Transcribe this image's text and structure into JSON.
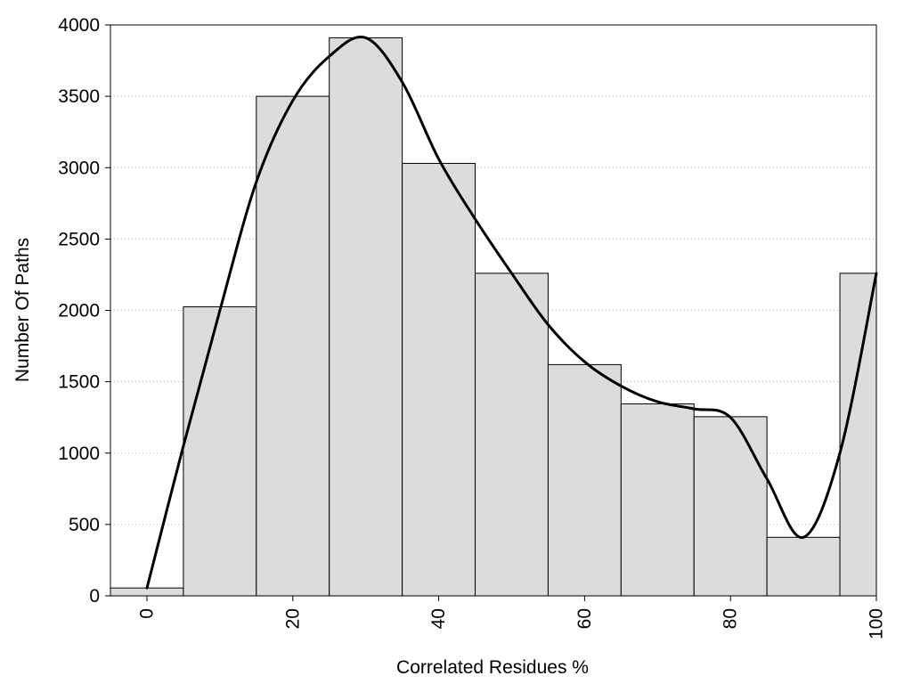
{
  "chart_data": {
    "type": "bar",
    "title": "",
    "xlabel": "Correlated Residues %",
    "ylabel": "Number Of Paths",
    "xlim": [
      -5,
      100
    ],
    "ylim": [
      0,
      4000
    ],
    "x_ticks": [
      0,
      20,
      40,
      60,
      80,
      100
    ],
    "x_tick_labels": [
      "0",
      "20",
      "40",
      "60",
      "80",
      "100"
    ],
    "y_ticks": [
      0,
      500,
      1000,
      1500,
      2000,
      2500,
      3000,
      3500,
      4000
    ],
    "y_tick_labels": [
      "0",
      "500",
      "1000",
      "1500",
      "2000",
      "2500",
      "3000",
      "3500",
      "4000"
    ],
    "grid": "horizontal dotted",
    "bin_width": 10,
    "categories": [
      0,
      10,
      20,
      30,
      40,
      50,
      60,
      70,
      80,
      90,
      100
    ],
    "values": [
      55,
      2025,
      3500,
      3910,
      3030,
      2260,
      1620,
      1345,
      1255,
      410,
      2260
    ],
    "bar_color": "#dcdcdc",
    "smooth_curve": {
      "x": [
        0,
        5,
        10,
        15,
        20,
        25,
        30,
        35,
        40,
        45,
        50,
        55,
        60,
        65,
        70,
        75,
        80,
        85,
        90,
        95,
        100
      ],
      "y": [
        55,
        1050,
        2000,
        2900,
        3470,
        3780,
        3910,
        3600,
        3060,
        2640,
        2260,
        1900,
        1640,
        1470,
        1360,
        1310,
        1250,
        820,
        410,
        1000,
        2260
      ]
    }
  }
}
